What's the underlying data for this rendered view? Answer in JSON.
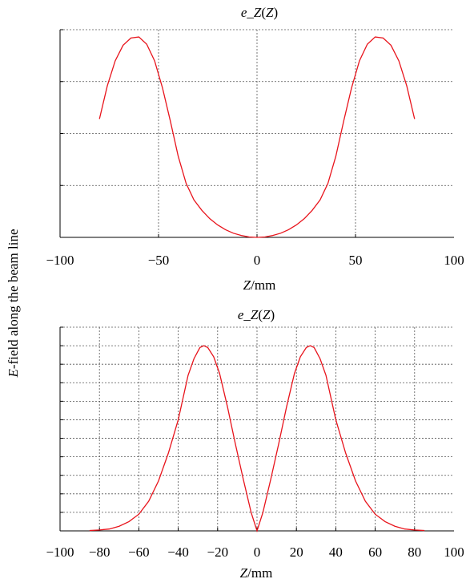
{
  "shared_ylabel_italic": "E",
  "shared_ylabel_rest": "-field along the beam line",
  "chart_data": [
    {
      "type": "line",
      "title_italic": "e_Z",
      "title_mid": "(",
      "title_var": "Z",
      "title_end": ")",
      "xlabel_italic": "Z",
      "xlabel_rest": "/mm",
      "xlim": [
        -100,
        100
      ],
      "xticks": [
        -100,
        -50,
        0,
        50,
        100
      ],
      "xtick_labels": [
        "−100",
        "−50",
        "0",
        "50",
        "100"
      ],
      "ylim": [
        0,
        1
      ],
      "yticks": [
        0,
        0.25,
        0.5,
        0.75,
        1.0
      ],
      "grid": true,
      "color": "#e8141c",
      "series": [
        {
          "x": [
            -80,
            -76,
            -72,
            -68,
            -64,
            -60,
            -56,
            -52,
            -48,
            -44,
            -40,
            -36,
            -32,
            -28,
            -24,
            -20,
            -16,
            -12,
            -8,
            -4,
            0,
            4,
            8,
            12,
            16,
            20,
            24,
            28,
            32,
            36,
            40,
            44,
            48,
            52,
            56,
            60,
            64,
            68,
            72,
            76,
            80
          ],
          "y": [
            0.57,
            0.73,
            0.85,
            0.925,
            0.96,
            0.965,
            0.93,
            0.85,
            0.72,
            0.56,
            0.39,
            0.26,
            0.18,
            0.13,
            0.09,
            0.06,
            0.037,
            0.02,
            0.009,
            0.002,
            0.0,
            0.002,
            0.009,
            0.02,
            0.037,
            0.06,
            0.09,
            0.13,
            0.18,
            0.26,
            0.39,
            0.56,
            0.72,
            0.85,
            0.93,
            0.965,
            0.96,
            0.925,
            0.85,
            0.73,
            0.57
          ]
        }
      ]
    },
    {
      "type": "line",
      "title_italic": "e_Z",
      "title_mid": "(",
      "title_var": "Z",
      "title_end": ")",
      "xlabel_italic": "Z",
      "xlabel_rest": "/mm",
      "xlim": [
        -100,
        100
      ],
      "xticks": [
        -100,
        -80,
        -60,
        -40,
        -20,
        0,
        20,
        40,
        60,
        80,
        100
      ],
      "xtick_labels": [
        "−100",
        "−80",
        "−60",
        "−40",
        "−20",
        "0",
        "20",
        "40",
        "60",
        "80",
        "100"
      ],
      "ylim": [
        0,
        1.1
      ],
      "yticks": [
        0,
        0.1,
        0.2,
        0.3,
        0.4,
        0.5,
        0.6,
        0.7,
        0.8,
        0.9,
        1.0,
        1.1
      ],
      "grid": true,
      "color": "#e8141c",
      "series": [
        {
          "x": [
            -85,
            -80,
            -75,
            -70,
            -65,
            -60,
            -55,
            -50,
            -45,
            -40,
            -35,
            -32,
            -29,
            -27,
            -25,
            -22,
            -19,
            -15,
            -11,
            -7,
            -3,
            0,
            3,
            7,
            11,
            15,
            19,
            22,
            25,
            27,
            29,
            32,
            35,
            40,
            45,
            50,
            55,
            60,
            65,
            70,
            75,
            80,
            85
          ],
          "y": [
            0.002,
            0.005,
            0.01,
            0.025,
            0.05,
            0.09,
            0.16,
            0.27,
            0.42,
            0.6,
            0.84,
            0.93,
            0.99,
            1.0,
            0.99,
            0.94,
            0.85,
            0.67,
            0.47,
            0.28,
            0.1,
            0.0,
            0.1,
            0.28,
            0.47,
            0.67,
            0.85,
            0.94,
            0.99,
            1.0,
            0.99,
            0.93,
            0.84,
            0.6,
            0.42,
            0.27,
            0.16,
            0.09,
            0.05,
            0.025,
            0.01,
            0.005,
            0.002
          ]
        }
      ]
    }
  ]
}
